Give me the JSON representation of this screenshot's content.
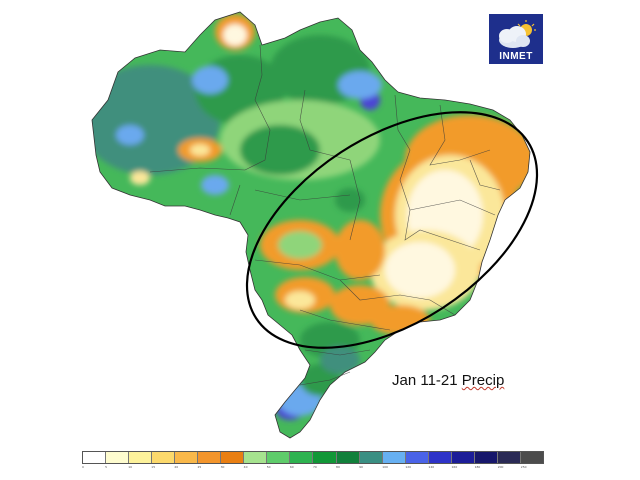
{
  "caption": {
    "prefix": "Jan 11-21 ",
    "underlined": "Precip"
  },
  "logo": {
    "text": "INMET",
    "icon": "cloud-sun-icon",
    "background": "#1e2f8c"
  },
  "legend": {
    "colors": [
      "#ffffff",
      "#fefccf",
      "#fdf29b",
      "#fcd96c",
      "#f9b84a",
      "#f3952c",
      "#e97f13",
      "#a6e38f",
      "#5fcc6b",
      "#2eb350",
      "#129737",
      "#12803b",
      "#3a8f83",
      "#67b0f2",
      "#4a63e8",
      "#2e33c8",
      "#1c1d98",
      "#17176b",
      "#2a2a55",
      "#4c4c4c"
    ],
    "labels": [
      "0",
      "5",
      "10",
      "15",
      "20",
      "25",
      "30",
      "40",
      "50",
      "60",
      "70",
      "80",
      "90",
      "100",
      "120",
      "140",
      "160",
      "180",
      "200",
      "250"
    ]
  },
  "colors": {
    "green_dark": "#2e9a4b",
    "green_mid": "#45b85a",
    "green_light": "#8fd57a",
    "orange": "#f29b2a",
    "yellow": "#fbe79a",
    "cream": "#fff8e0",
    "teal": "#3f8f7d",
    "blue": "#6aa9ee",
    "purple": "#4b45d4",
    "ellipse": "#000000"
  }
}
